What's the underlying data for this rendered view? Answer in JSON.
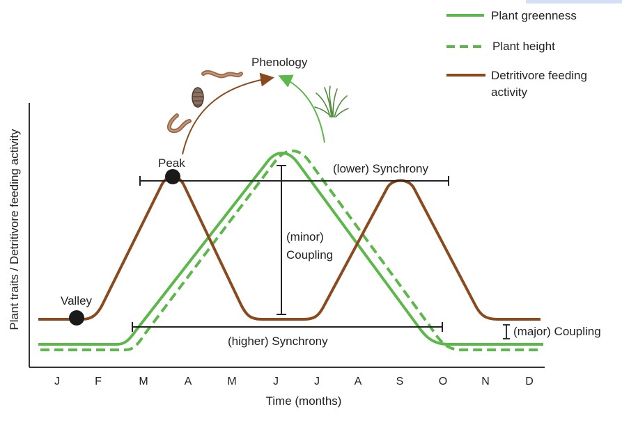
{
  "legend": {
    "greenness": "Plant greenness",
    "height": "Plant height",
    "detritivore_line1": "Detritivore feeding",
    "detritivore_line2": "activity"
  },
  "labels": {
    "phenology": "Phenology",
    "peak": "Peak",
    "valley": "Valley",
    "lower_synchrony": "(lower) Synchrony",
    "higher_synchrony": "(higher) Synchrony",
    "minor": "(minor)",
    "coupling": "Coupling",
    "major_coupling": "(major) Coupling"
  },
  "axes": {
    "ylabel": "Plant traits / Detritivore feeding activity",
    "xlabel": "Time (months)",
    "months": [
      "J",
      "F",
      "M",
      "A",
      "M",
      "J",
      "J",
      "A",
      "S",
      "O",
      "N",
      "D"
    ]
  },
  "colors": {
    "green": "#5cb84a",
    "brown": "#8b4a1e",
    "axis": "#333333",
    "grass": "#4e8a3a"
  },
  "icons": [
    "earthworm-icon",
    "woodlouse-icon",
    "grass-icon"
  ]
}
